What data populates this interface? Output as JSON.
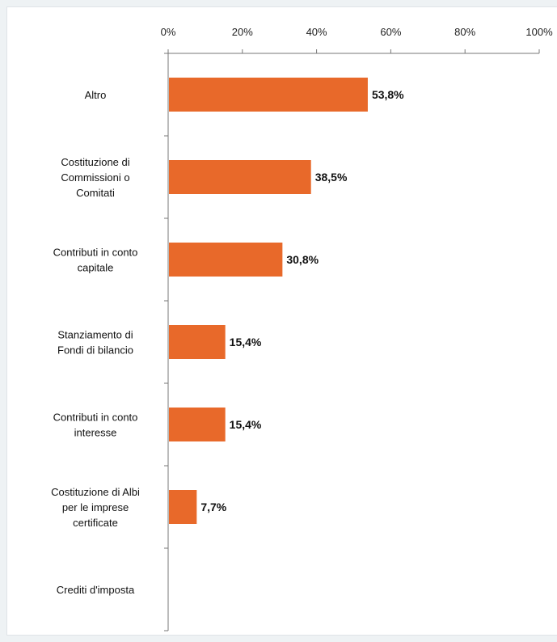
{
  "chart_data": {
    "type": "bar",
    "orientation": "horizontal",
    "x_axis_position": "top",
    "xlim": [
      0,
      100
    ],
    "x_ticks": [
      "0%",
      "20%",
      "40%",
      "60%",
      "80%",
      "100%"
    ],
    "grid": false,
    "categories": [
      [
        "Altro"
      ],
      [
        "Costituzione di",
        "Commissioni o",
        "Comitati"
      ],
      [
        "Contributi in conto",
        "capitale"
      ],
      [
        "Stanziamento di",
        "Fondi di bilancio"
      ],
      [
        "Contributi in conto",
        "interesse"
      ],
      [
        "Costituzione di Albi",
        "per le imprese",
        "certificate"
      ],
      [
        "Crediti d'imposta"
      ]
    ],
    "values": [
      53.8,
      38.5,
      30.8,
      15.4,
      15.4,
      7.7,
      null
    ],
    "data_labels": [
      "53,8%",
      "38,5%",
      "30,8%",
      "15,4%",
      "15,4%",
      "7,7%",
      ""
    ],
    "bar_color": "#e8692a"
  }
}
